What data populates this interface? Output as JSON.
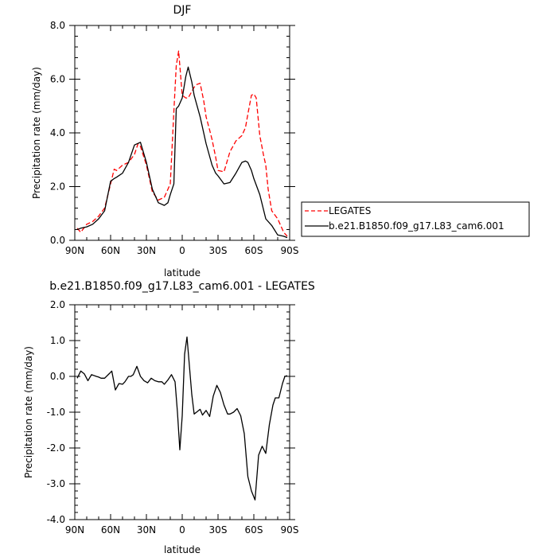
{
  "chart_data": [
    {
      "type": "line",
      "title": "DJF",
      "xlabel": "latitude",
      "ylabel": "Precipitation rate (mm/day)",
      "xticks": [
        "90N",
        "60N",
        "30N",
        "0",
        "30S",
        "60S",
        "90S"
      ],
      "yticks": [
        "0.0",
        "2.0",
        "4.0",
        "6.0",
        "8.0"
      ],
      "xlim": [
        90,
        -90
      ],
      "ylim": [
        0,
        8
      ],
      "legend_position": "right",
      "series": [
        {
          "name": "LEGATES",
          "color": "#ff0000",
          "dashed": true,
          "x": [
            88,
            85,
            80,
            75,
            70,
            65,
            60,
            57,
            55,
            50,
            45,
            40,
            37,
            35,
            30,
            25,
            20,
            15,
            12,
            10,
            7,
            5,
            3,
            0,
            -3,
            -5,
            -10,
            -12,
            -15,
            -18,
            -20,
            -23,
            -25,
            -28,
            -30,
            -35,
            -40,
            -45,
            -50,
            -53,
            -55,
            -58,
            -60,
            -62,
            -65,
            -68,
            -70,
            -72,
            -75,
            -80,
            -85,
            -88
          ],
          "y": [
            0.45,
            0.3,
            0.6,
            0.7,
            0.9,
            1.2,
            2.1,
            2.65,
            2.6,
            2.8,
            2.9,
            3.2,
            3.6,
            3.5,
            2.8,
            1.8,
            1.5,
            1.6,
            1.9,
            2.1,
            4.8,
            6.5,
            7.05,
            5.4,
            5.3,
            5.3,
            5.7,
            5.8,
            5.85,
            5.2,
            4.6,
            4.1,
            3.75,
            3.1,
            2.6,
            2.55,
            3.3,
            3.7,
            3.9,
            4.2,
            4.7,
            5.4,
            5.45,
            5.3,
            3.9,
            3.2,
            2.8,
            1.9,
            1.1,
            0.8,
            0.3,
            0.15
          ]
        },
        {
          "name": "b.e21.B1850.f09_g17.L83_cam6.001",
          "color": "#000000",
          "dashed": false,
          "x": [
            88,
            85,
            80,
            75,
            70,
            65,
            60,
            57,
            55,
            50,
            45,
            40,
            35,
            30,
            25,
            20,
            15,
            12,
            10,
            7,
            5,
            3,
            0,
            -3,
            -5,
            -8,
            -10,
            -15,
            -20,
            -25,
            -28,
            -30,
            -35,
            -40,
            -45,
            -50,
            -53,
            -55,
            -58,
            -60,
            -65,
            -70,
            -75,
            -80,
            -85,
            -88
          ],
          "y": [
            0.4,
            0.45,
            0.5,
            0.6,
            0.8,
            1.1,
            2.2,
            2.3,
            2.35,
            2.5,
            2.9,
            3.55,
            3.65,
            2.9,
            1.9,
            1.4,
            1.3,
            1.4,
            1.7,
            2.1,
            4.9,
            5.0,
            5.3,
            6.1,
            6.45,
            5.9,
            5.4,
            4.6,
            3.6,
            2.8,
            2.5,
            2.4,
            2.1,
            2.15,
            2.5,
            2.9,
            2.95,
            2.9,
            2.6,
            2.3,
            1.7,
            0.8,
            0.55,
            0.2,
            0.15,
            0.1
          ]
        }
      ]
    },
    {
      "type": "line",
      "title": "b.e21.B1850.f09_g17.L83_cam6.001 - LEGATES",
      "xlabel": "latitude",
      "ylabel": "Precipitation rate (mm/day)",
      "xticks": [
        "90N",
        "60N",
        "30N",
        "0",
        "30S",
        "60S",
        "90S"
      ],
      "yticks": [
        "-4.0",
        "-3.0",
        "-2.0",
        "-1.0",
        "0.0",
        "1.0",
        "2.0"
      ],
      "xlim": [
        90,
        -90
      ],
      "ylim": [
        -4,
        2
      ],
      "series": [
        {
          "color": "#000000",
          "dashed": false,
          "x": [
            88,
            85,
            82,
            79,
            76,
            72,
            70,
            68,
            65,
            61,
            59,
            56,
            53,
            50,
            48,
            45,
            43,
            41,
            38,
            35,
            32,
            29,
            26,
            23,
            20,
            17,
            15,
            12,
            9,
            6,
            4,
            2,
            0,
            -2,
            -4,
            -6,
            -8,
            -10,
            -12,
            -15,
            -17,
            -20,
            -23,
            -26,
            -29,
            -32,
            -35,
            -38,
            -40,
            -43,
            -46,
            -49,
            -52,
            -55,
            -58,
            -61,
            -64,
            -67,
            -70,
            -73,
            -76,
            -78,
            -81,
            -84,
            -86,
            -88
          ],
          "y": [
            -0.05,
            0.15,
            0.07,
            -0.12,
            0.05,
            0.0,
            -0.02,
            -0.05,
            -0.05,
            0.08,
            0.15,
            -0.38,
            -0.2,
            -0.22,
            -0.15,
            0.0,
            0.0,
            0.05,
            0.28,
            0.0,
            -0.12,
            -0.18,
            -0.05,
            -0.12,
            -0.15,
            -0.15,
            -0.22,
            -0.1,
            0.05,
            -0.15,
            -1.0,
            -2.05,
            -1.1,
            0.62,
            1.1,
            0.3,
            -0.5,
            -1.05,
            -1.0,
            -0.92,
            -1.08,
            -0.95,
            -1.12,
            -0.55,
            -0.25,
            -0.45,
            -0.8,
            -1.05,
            -1.05,
            -1.0,
            -0.9,
            -1.1,
            -1.6,
            -2.8,
            -3.2,
            -3.45,
            -2.2,
            -1.95,
            -2.15,
            -1.35,
            -0.8,
            -0.6,
            -0.6,
            -0.2,
            0.0,
            0.02
          ]
        }
      ]
    }
  ]
}
